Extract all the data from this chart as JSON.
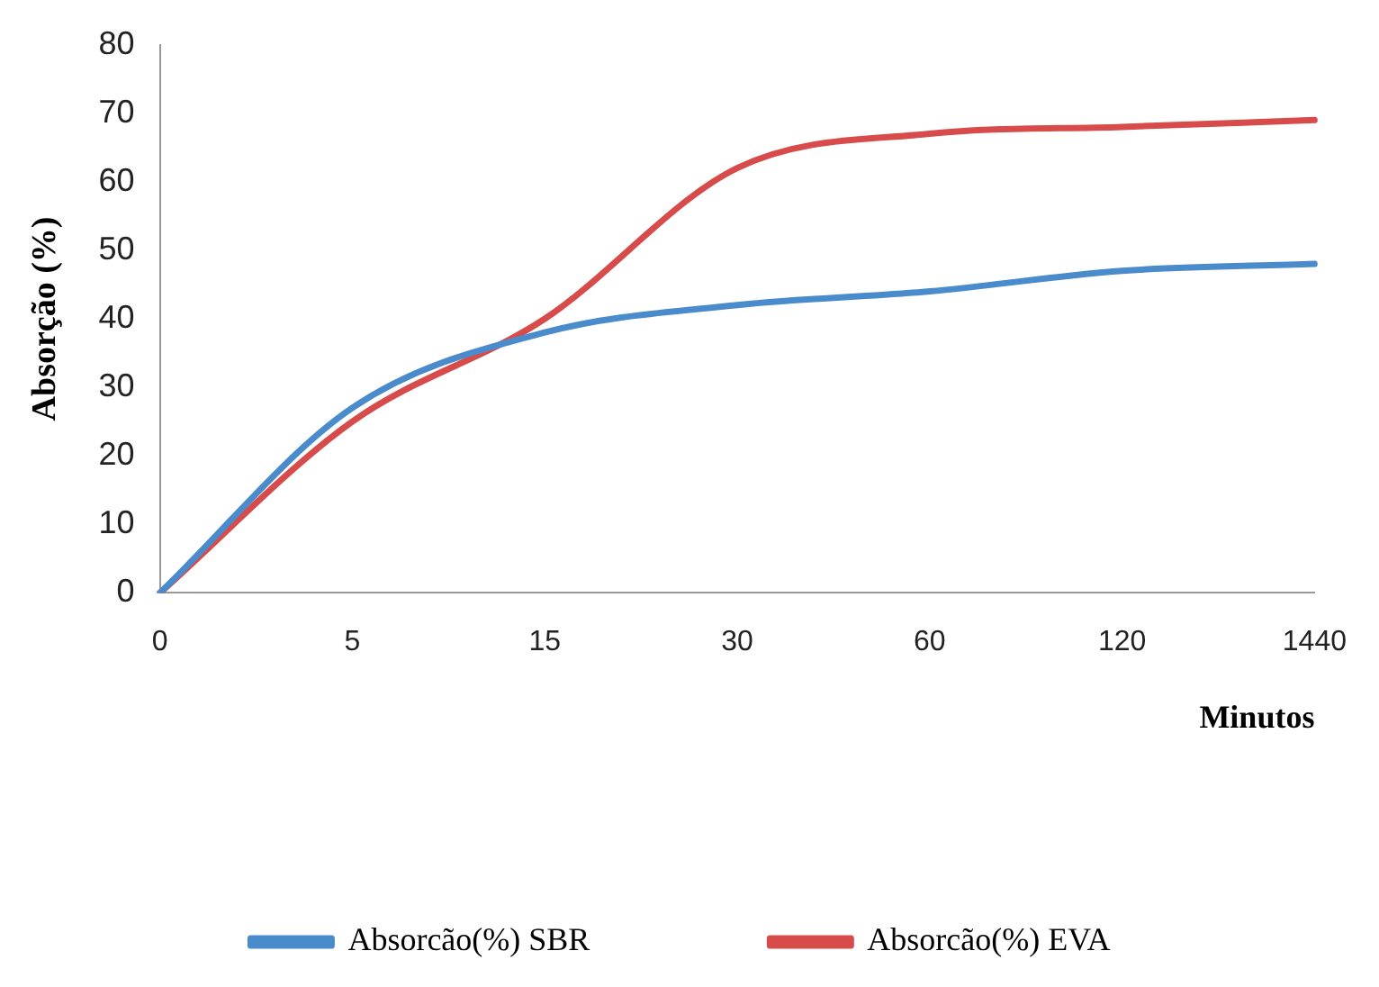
{
  "chart_data": {
    "type": "line",
    "xlabel": "Minutos",
    "ylabel": "Absorção (%)",
    "categories": [
      "0",
      "5",
      "15",
      "30",
      "60",
      "120",
      "1440"
    ],
    "series": [
      {
        "name": "Absorcão(%) SBR",
        "color": "#4a8ccb",
        "values": [
          0,
          27,
          38,
          42,
          44,
          47,
          48
        ]
      },
      {
        "name": "Absorcão(%) EVA",
        "color": "#d84b4b",
        "values": [
          0,
          25,
          40,
          62,
          67,
          68,
          69
        ]
      }
    ],
    "ylim": [
      0,
      80
    ],
    "yticks": [
      0,
      10,
      20,
      30,
      40,
      50,
      60,
      70,
      80
    ],
    "grid": false,
    "legend": "bottom",
    "marker": "none",
    "line_style": "solid"
  }
}
